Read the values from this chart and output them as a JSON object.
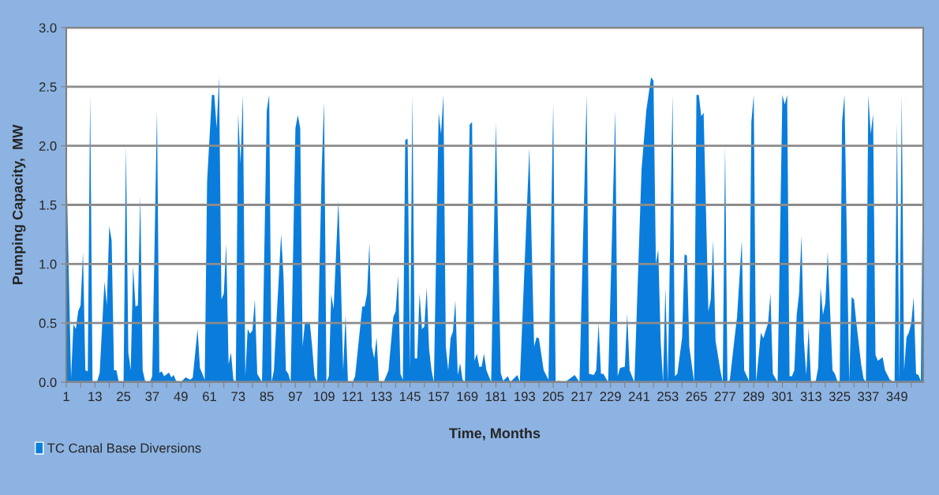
{
  "chart_data": {
    "type": "area",
    "xlabel": "Time, Months",
    "ylabel": "Pumping Capacity,  MW",
    "xlim": [
      1,
      360
    ],
    "ylim": [
      0,
      3.0
    ],
    "xticks": [
      1,
      {
        "value": 7,
        "label": null
      },
      13,
      {
        "value": 19,
        "label": null
      },
      25,
      {
        "value": 31,
        "label": null
      },
      37,
      {
        "value": 43,
        "label": null
      },
      49,
      {
        "value": 55,
        "label": null
      },
      61,
      {
        "value": 67,
        "label": null
      },
      73,
      {
        "value": 79,
        "label": null
      },
      85,
      {
        "value": 91,
        "label": null
      },
      97,
      {
        "value": 103,
        "label": null
      },
      109,
      {
        "value": 115,
        "label": null
      },
      121,
      {
        "value": 127,
        "label": null
      },
      133,
      {
        "value": 139,
        "label": null
      },
      145,
      {
        "value": 151,
        "label": null
      },
      157,
      {
        "value": 163,
        "label": null
      },
      169,
      {
        "value": 175,
        "label": null
      },
      181,
      {
        "value": 187,
        "label": null
      },
      193,
      {
        "value": 199,
        "label": null
      },
      205,
      {
        "value": 211,
        "label": null
      },
      217,
      {
        "value": 223,
        "label": null
      },
      229,
      {
        "value": 235,
        "label": null
      },
      241,
      {
        "value": 247,
        "label": null
      },
      253,
      {
        "value": 259,
        "label": null
      },
      265,
      {
        "value": 271,
        "label": null
      },
      277,
      {
        "value": 283,
        "label": null
      },
      289,
      {
        "value": 295,
        "label": null
      },
      301,
      {
        "value": 307,
        "label": null
      },
      313,
      {
        "value": 319,
        "label": null
      },
      325,
      {
        "value": 331,
        "label": null
      },
      337,
      {
        "value": 343,
        "label": null
      },
      349,
      {
        "value": 355,
        "label": null
      }
    ],
    "yticks": [
      {
        "value": 0,
        "label": "0.0"
      },
      {
        "value": 0.5,
        "label": "0.5"
      },
      {
        "value": 1.0,
        "label": "1.0"
      },
      {
        "value": 1.5,
        "label": "1.5"
      },
      {
        "value": 2.0,
        "label": "2.0"
      },
      {
        "value": 2.5,
        "label": "2.5"
      },
      {
        "value": 3.0,
        "label": "3.0"
      }
    ],
    "grid": "y",
    "legend": "bottom left",
    "series": [
      {
        "name": "TC Canal Base Diversions",
        "color": "#0a7ddc",
        "x": [
          1,
          3,
          4,
          5,
          6,
          7,
          8,
          9,
          10,
          11,
          12,
          14,
          15,
          17,
          18,
          19,
          20,
          21,
          22,
          23,
          25,
          26,
          27,
          28,
          29,
          30,
          31,
          32,
          33,
          34,
          36,
          37,
          39,
          40,
          41,
          42,
          44,
          45,
          46,
          47,
          49,
          51,
          53,
          54,
          56,
          57,
          59,
          60,
          62,
          63,
          64,
          65,
          66,
          67,
          68,
          69,
          70,
          71,
          72,
          73,
          74,
          75,
          76,
          77,
          78,
          79,
          80,
          81,
          83,
          85,
          86,
          87,
          88,
          89,
          91,
          92,
          93,
          94,
          95,
          97,
          98,
          99,
          100,
          101,
          102,
          103,
          104,
          105,
          106,
          108,
          109,
          110,
          111,
          112,
          113,
          115,
          116,
          117,
          118,
          119,
          121,
          122,
          125,
          126,
          127,
          128,
          129,
          130,
          131,
          132,
          134,
          136,
          138,
          139,
          140,
          141,
          142,
          143,
          144,
          145,
          146,
          147,
          148,
          149,
          150,
          151,
          152,
          153,
          154,
          155,
          157,
          158,
          159,
          160,
          161,
          162,
          163,
          164,
          165,
          166,
          167,
          168,
          170,
          171,
          172,
          173,
          174,
          175,
          176,
          177,
          178,
          179,
          181,
          183,
          184,
          186,
          187,
          190,
          191,
          195,
          197,
          198,
          199,
          201,
          203,
          205,
          206,
          207,
          210,
          214,
          216,
          219,
          220,
          222,
          223,
          224,
          225,
          226,
          228,
          231,
          232,
          233,
          235,
          236,
          237,
          239,
          242,
          243,
          244,
          246,
          247,
          248,
          249,
          250,
          251,
          252,
          253,
          255,
          256,
          257,
          259,
          260,
          261,
          262,
          264,
          265,
          266,
          267,
          268,
          270,
          271,
          272,
          273,
          275,
          276,
          277,
          278,
          279,
          281,
          282,
          284,
          285,
          287,
          288,
          289,
          290,
          292,
          293,
          295,
          296,
          297,
          299,
          301,
          302,
          303,
          304,
          305,
          306,
          307,
          308,
          309,
          310,
          311,
          312,
          313,
          315,
          316,
          317,
          318,
          319,
          320,
          322,
          323,
          324,
          325,
          326,
          327,
          329,
          330,
          331,
          332,
          334,
          335,
          336,
          337,
          338,
          339,
          340,
          341,
          343,
          344,
          346,
          348,
          349,
          350,
          351,
          352,
          353,
          354,
          355,
          356,
          357,
          358,
          359,
          360
        ],
        "values": [
          1.9,
          0.03,
          0.49,
          0.45,
          0.6,
          0.65,
          1.1,
          0.1,
          0.09,
          2.43,
          0,
          0.01,
          0.08,
          0.85,
          0.65,
          1.32,
          1.2,
          0.1,
          0.1,
          0,
          0,
          2.0,
          0.25,
          0.1,
          0.98,
          0.64,
          0.65,
          1.58,
          0.1,
          0.01,
          0,
          0.05,
          2.3,
          0.08,
          0.09,
          0.05,
          0.08,
          0.04,
          0.06,
          0.01,
          0,
          0.04,
          0.02,
          0.04,
          0.45,
          0.12,
          0.02,
          1.7,
          2.43,
          2.43,
          2.15,
          2.58,
          0.7,
          0.75,
          1.17,
          0.15,
          0.25,
          0.02,
          0,
          2.27,
          1.85,
          2.43,
          0.05,
          0.45,
          0.41,
          0.44,
          0.7,
          0.07,
          0,
          2.3,
          2.43,
          0,
          0.1,
          0.5,
          1.25,
          0.9,
          0.1,
          0.07,
          0,
          2.15,
          2.26,
          2.15,
          0.3,
          0.51,
          0.49,
          0.51,
          0.3,
          0.05,
          0,
          1.8,
          2.37,
          0,
          0.05,
          0.74,
          0.62,
          1.54,
          0.9,
          0.1,
          0.57,
          0,
          0,
          0.05,
          0.64,
          0.64,
          0.75,
          1.18,
          0.3,
          0.2,
          0.38,
          0,
          0,
          0.1,
          0.55,
          0.6,
          0.9,
          0.07,
          0.02,
          2.05,
          2.06,
          0.1,
          2.43,
          0.2,
          0.2,
          0.75,
          0.45,
          0.47,
          0.8,
          0.28,
          0.1,
          0,
          2.28,
          2.1,
          2.43,
          0.3,
          0.1,
          0.37,
          0.43,
          0.69,
          0.06,
          0.16,
          0.02,
          0,
          2.18,
          2.2,
          0.18,
          0.24,
          0.13,
          0.13,
          0.24,
          0.1,
          0.05,
          0,
          2.2,
          0.08,
          0.01,
          0.05,
          0,
          0.06,
          0,
          1.98,
          0.3,
          0.38,
          0.37,
          0.1,
          0.02,
          2.36,
          0,
          0.01,
          0,
          0.06,
          0,
          2.43,
          0.07,
          0.06,
          0.1,
          0.5,
          0.07,
          0.07,
          0,
          2.3,
          0.05,
          0.12,
          0.13,
          0.58,
          0.1,
          0,
          1.8,
          2.05,
          2.3,
          2.58,
          2.55,
          1.0,
          1.12,
          0.35,
          0,
          0.8,
          0,
          2.43,
          0.05,
          0.07,
          0.38,
          1.08,
          1.07,
          0.3,
          0,
          2.43,
          2.43,
          2.25,
          2.28,
          0.6,
          0.7,
          1.2,
          0.35,
          0.1,
          0,
          2.0,
          0,
          0.02,
          0.38,
          0.55,
          1.2,
          0.1,
          0.01,
          2.2,
          2.43,
          0,
          0.42,
          0.37,
          0.5,
          0.75,
          0.07,
          0,
          2.43,
          2.35,
          2.43,
          0.05,
          0.05,
          0.1,
          0.57,
          0.75,
          1.24,
          0.35,
          0.06,
          0.46,
          0,
          0.01,
          0.12,
          0.8,
          0.57,
          0.67,
          1.1,
          0.1,
          0.07,
          0.01,
          0,
          2.2,
          2.43,
          0,
          0.72,
          0.7,
          0.5,
          0.15,
          0.03,
          0,
          2.43,
          2.1,
          2.27,
          0.23,
          0.18,
          0.21,
          0.1,
          0.02,
          0,
          2.2,
          0,
          2.43,
          0.1,
          0.38,
          0.42,
          0.5,
          0.72,
          0.07,
          0.06,
          0.01,
          2.0
        ]
      }
    ]
  }
}
